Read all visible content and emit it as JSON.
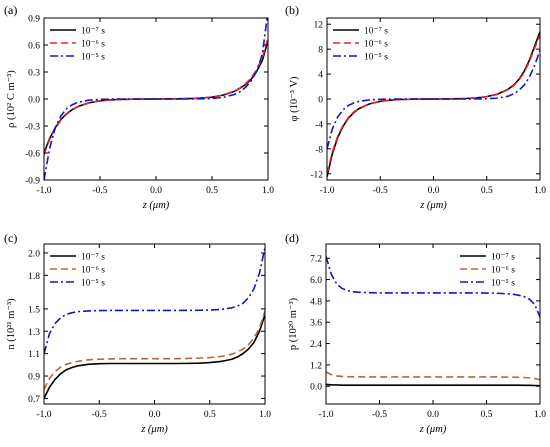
{
  "figure": {
    "colors": {
      "series_1": "#000000",
      "series_2_a": "#e8222a",
      "series_2_b": "#b06a3a",
      "series_3": "#1414c8"
    }
  },
  "chart_data": [
    {
      "type": "line",
      "panel_label": "(a)",
      "xlabel": "z (μm)",
      "ylabel": "ρ (10² C m⁻³)",
      "xlim": [
        -1.0,
        1.0
      ],
      "ylim": [
        -0.9,
        0.9
      ],
      "xticks": [
        "-1.0",
        "-0.5",
        "0.0",
        "0.5",
        "1.0"
      ],
      "yticks": [
        "-0.9",
        "-0.6",
        "-0.3",
        "0.0",
        "0.3",
        "0.6",
        "0.9"
      ],
      "grid": false,
      "legend_position": "top-left",
      "x": [
        -1.0,
        -0.95,
        -0.9,
        -0.85,
        -0.8,
        -0.75,
        -0.7,
        -0.6,
        -0.5,
        -0.4,
        -0.3,
        -0.2,
        -0.1,
        0.0,
        0.1,
        0.2,
        0.3,
        0.4,
        0.5,
        0.6,
        0.7,
        0.75,
        0.8,
        0.85,
        0.9,
        0.95,
        1.0
      ],
      "series": [
        {
          "name": "10⁻⁷ s",
          "color": "#000000",
          "dash": "solid",
          "values": [
            -0.6,
            -0.44,
            -0.32,
            -0.23,
            -0.165,
            -0.12,
            -0.085,
            -0.043,
            -0.02,
            -0.009,
            -0.004,
            -0.002,
            -0.001,
            0.0,
            0.001,
            0.002,
            0.005,
            0.01,
            0.02,
            0.043,
            0.085,
            0.12,
            0.16,
            0.22,
            0.31,
            0.43,
            0.65
          ]
        },
        {
          "name": "10⁻⁶ s",
          "color": "#e8222a",
          "dash": "dashed",
          "values": [
            -0.62,
            -0.45,
            -0.33,
            -0.235,
            -0.17,
            -0.123,
            -0.088,
            -0.045,
            -0.021,
            -0.01,
            -0.004,
            -0.002,
            -0.001,
            0.0,
            0.001,
            0.002,
            0.005,
            0.01,
            0.021,
            0.045,
            0.088,
            0.123,
            0.17,
            0.235,
            0.33,
            0.46,
            0.68
          ]
        },
        {
          "name": "10⁻⁵ s",
          "color": "#1414c8",
          "dash": "dashdot",
          "values": [
            -0.9,
            -0.55,
            -0.32,
            -0.19,
            -0.11,
            -0.065,
            -0.038,
            -0.013,
            -0.004,
            -0.001,
            0.0,
            0.0,
            0.0,
            0.0,
            0.0,
            0.0,
            0.0,
            0.002,
            0.006,
            0.018,
            0.05,
            0.08,
            0.13,
            0.2,
            0.31,
            0.5,
            0.98
          ]
        }
      ]
    },
    {
      "type": "line",
      "panel_label": "(b)",
      "xlabel": "z (μm)",
      "ylabel": "φ (10⁻³ V)",
      "xlim": [
        -1.0,
        1.0
      ],
      "ylim": [
        -13,
        13
      ],
      "xticks": [
        "-1.0",
        "-0.5",
        "0.0",
        "0.5",
        "1.0"
      ],
      "yticks": [
        "-12",
        "-8",
        "-4",
        "0",
        "4",
        "8",
        "12"
      ],
      "grid": false,
      "legend_position": "top-left",
      "x": [
        -1.0,
        -0.95,
        -0.9,
        -0.85,
        -0.8,
        -0.75,
        -0.7,
        -0.6,
        -0.5,
        -0.4,
        -0.3,
        -0.2,
        -0.1,
        0.0,
        0.1,
        0.2,
        0.3,
        0.4,
        0.5,
        0.6,
        0.7,
        0.75,
        0.8,
        0.85,
        0.9,
        0.95,
        1.0
      ],
      "series": [
        {
          "name": "10⁻⁷ s",
          "color": "#000000",
          "dash": "solid",
          "values": [
            -12.5,
            -8.8,
            -6.2,
            -4.4,
            -3.1,
            -2.2,
            -1.55,
            -0.78,
            -0.38,
            -0.18,
            -0.08,
            -0.03,
            -0.01,
            0.0,
            0.01,
            0.03,
            0.08,
            0.18,
            0.38,
            0.78,
            1.55,
            2.2,
            3.1,
            4.4,
            6.2,
            8.5,
            10.8
          ]
        },
        {
          "name": "10⁻⁶ s",
          "color": "#e8222a",
          "dash": "dashed",
          "values": [
            -12.0,
            -8.5,
            -6.0,
            -4.25,
            -3.0,
            -2.1,
            -1.5,
            -0.75,
            -0.37,
            -0.17,
            -0.08,
            -0.03,
            -0.01,
            0.0,
            0.01,
            0.03,
            0.08,
            0.17,
            0.37,
            0.75,
            1.5,
            2.1,
            3.0,
            4.2,
            6.0,
            8.2,
            10.3
          ]
        },
        {
          "name": "10⁻⁵ s",
          "color": "#1414c8",
          "dash": "dashdot",
          "values": [
            -8.0,
            -4.8,
            -2.9,
            -1.75,
            -1.05,
            -0.63,
            -0.38,
            -0.14,
            -0.05,
            -0.02,
            0.0,
            0.0,
            0.0,
            0.0,
            0.0,
            0.0,
            0.0,
            0.02,
            0.05,
            0.14,
            0.45,
            0.8,
            1.35,
            2.2,
            3.5,
            5.4,
            7.8
          ]
        }
      ]
    },
    {
      "type": "line",
      "panel_label": "(c)",
      "xlabel": "z (μm)",
      "ylabel": "n (10²¹ m⁻³)",
      "xlim": [
        -1.0,
        1.0
      ],
      "ylim": [
        0.65,
        2.08
      ],
      "xticks": [
        "-1.0",
        "-0.5",
        "0.0",
        "0.5",
        "1.0"
      ],
      "yticks": [
        "0.7",
        "0.9",
        "1.1",
        "1.3",
        "1.5",
        "1.8",
        "2.0"
      ],
      "grid": false,
      "legend_position": "top-left",
      "x": [
        -1.0,
        -0.95,
        -0.9,
        -0.85,
        -0.8,
        -0.75,
        -0.7,
        -0.6,
        -0.5,
        -0.4,
        -0.3,
        -0.2,
        -0.1,
        0.0,
        0.1,
        0.2,
        0.3,
        0.4,
        0.5,
        0.6,
        0.7,
        0.75,
        0.8,
        0.85,
        0.9,
        0.95,
        1.0
      ],
      "series": [
        {
          "name": "10⁻⁷ s",
          "color": "#000000",
          "dash": "solid",
          "values": [
            0.7,
            0.8,
            0.87,
            0.92,
            0.955,
            0.975,
            0.99,
            1.005,
            1.01,
            1.012,
            1.012,
            1.012,
            1.012,
            1.012,
            1.012,
            1.012,
            1.013,
            1.015,
            1.02,
            1.03,
            1.05,
            1.07,
            1.1,
            1.14,
            1.2,
            1.3,
            1.45
          ]
        },
        {
          "name": "10⁻⁶ s",
          "color": "#b06a3a",
          "dash": "dashed",
          "values": [
            0.78,
            0.88,
            0.94,
            0.98,
            1.005,
            1.02,
            1.03,
            1.045,
            1.05,
            1.053,
            1.055,
            1.055,
            1.055,
            1.055,
            1.055,
            1.055,
            1.057,
            1.06,
            1.065,
            1.075,
            1.095,
            1.115,
            1.14,
            1.18,
            1.24,
            1.33,
            1.48
          ]
        },
        {
          "name": "10⁻⁵ s",
          "color": "#1414c8",
          "dash": "dashdot",
          "values": [
            1.1,
            1.28,
            1.37,
            1.42,
            1.45,
            1.465,
            1.475,
            1.482,
            1.485,
            1.486,
            1.486,
            1.486,
            1.486,
            1.486,
            1.486,
            1.486,
            1.487,
            1.488,
            1.49,
            1.495,
            1.51,
            1.525,
            1.55,
            1.6,
            1.68,
            1.82,
            2.05
          ]
        }
      ]
    },
    {
      "type": "line",
      "panel_label": "(d)",
      "xlabel": "z (μm)",
      "ylabel": "p (10²⁰ m⁻³)",
      "xlim": [
        -1.0,
        1.0
      ],
      "ylim": [
        -1.0,
        8.0
      ],
      "xticks": [
        "-1.0",
        "-0.5",
        "0.0",
        "0.5",
        "1.0"
      ],
      "yticks": [
        "0.0",
        "1.2",
        "2.4",
        "3.6",
        "4.8",
        "6.0",
        "7.2"
      ],
      "grid": false,
      "legend_position": "top-right",
      "x": [
        -1.0,
        -0.95,
        -0.9,
        -0.85,
        -0.8,
        -0.75,
        -0.7,
        -0.6,
        -0.5,
        -0.4,
        -0.3,
        -0.2,
        -0.1,
        0.0,
        0.1,
        0.2,
        0.3,
        0.4,
        0.5,
        0.6,
        0.7,
        0.75,
        0.8,
        0.85,
        0.9,
        0.95,
        1.0
      ],
      "series": [
        {
          "name": "10⁻⁷ s",
          "color": "#000000",
          "dash": "solid",
          "values": [
            0.1,
            0.08,
            0.07,
            0.06,
            0.06,
            0.06,
            0.06,
            0.06,
            0.06,
            0.06,
            0.06,
            0.06,
            0.06,
            0.06,
            0.06,
            0.06,
            0.06,
            0.06,
            0.06,
            0.06,
            0.06,
            0.06,
            0.06,
            0.05,
            0.05,
            0.04,
            0.03
          ]
        },
        {
          "name": "10⁻⁶ s",
          "color": "#b06a3a",
          "dash": "dashed",
          "values": [
            0.8,
            0.65,
            0.58,
            0.55,
            0.54,
            0.53,
            0.53,
            0.52,
            0.52,
            0.52,
            0.52,
            0.52,
            0.52,
            0.52,
            0.52,
            0.52,
            0.52,
            0.52,
            0.52,
            0.52,
            0.51,
            0.51,
            0.5,
            0.49,
            0.47,
            0.43,
            0.37
          ]
        },
        {
          "name": "10⁻⁵ s",
          "color": "#1414c8",
          "dash": "dashdot",
          "values": [
            7.3,
            6.3,
            5.75,
            5.5,
            5.38,
            5.32,
            5.29,
            5.26,
            5.25,
            5.25,
            5.25,
            5.25,
            5.25,
            5.25,
            5.25,
            5.25,
            5.25,
            5.25,
            5.24,
            5.23,
            5.2,
            5.17,
            5.12,
            5.04,
            4.9,
            4.6,
            3.9
          ]
        }
      ]
    }
  ]
}
